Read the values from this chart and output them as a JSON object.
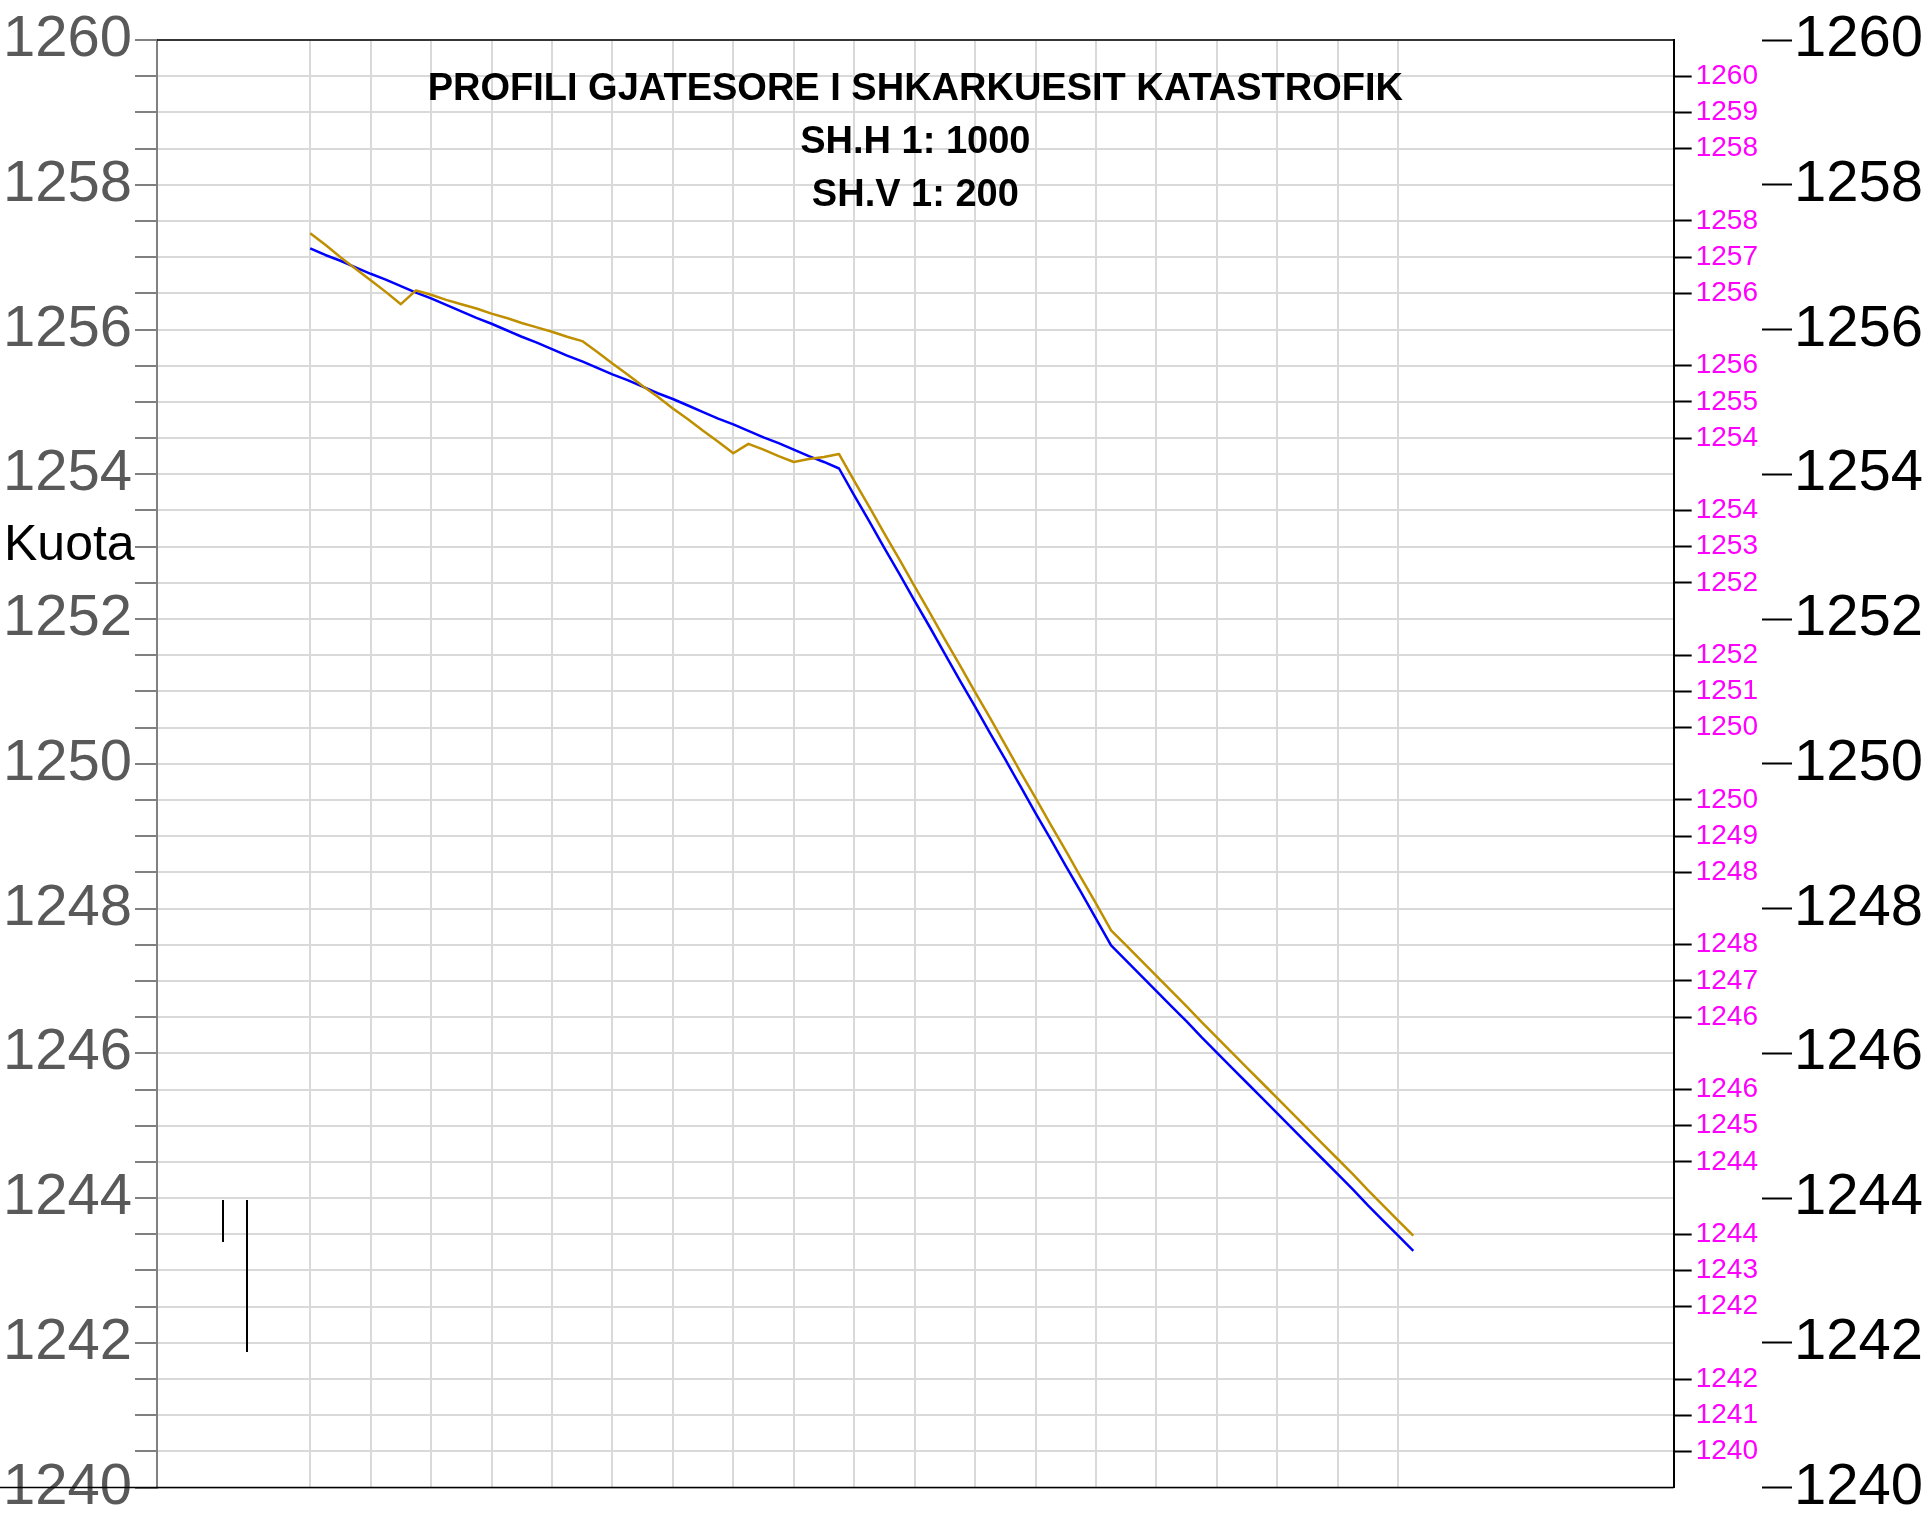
{
  "chart_data": {
    "type": "line",
    "title": "PROFILI GJATESORE I SHKARKUESIT KATASTROFIK",
    "subtitle": "SH.H 1: 1000",
    "annotations": [
      "SH.V 1: 200"
    ],
    "ylabel": "Kuota",
    "categories": [
      null,
      null,
      null,
      null,
      null,
      null,
      null,
      null,
      null,
      null,
      null,
      null,
      null,
      null,
      null,
      null,
      null,
      null,
      null,
      null,
      null,
      null,
      null,
      null,
      null,
      null,
      null,
      null,
      null,
      null,
      null,
      null,
      null,
      null,
      null,
      null,
      null,
      null,
      null,
      null,
      null,
      null,
      null,
      null,
      null,
      null,
      null,
      null,
      null,
      null,
      null,
      null,
      null,
      null,
      null,
      null,
      null,
      null,
      null,
      null,
      null,
      null,
      null,
      null,
      null,
      null,
      null,
      null,
      null,
      null,
      null,
      null,
      null,
      null
    ],
    "ylim": [
      1240,
      1260
    ],
    "yticks": [
      1240,
      {
        "value": 1240.5,
        "label": null
      },
      {
        "value": 1241,
        "label": null
      },
      {
        "value": 1241.5,
        "label": null
      },
      1242,
      {
        "value": 1242.5,
        "label": null
      },
      {
        "value": 1243,
        "label": null
      },
      {
        "value": 1243.5,
        "label": null
      },
      1244,
      {
        "value": 1244.5,
        "label": null
      },
      {
        "value": 1245,
        "label": null
      },
      {
        "value": 1245.5,
        "label": null
      },
      1246,
      {
        "value": 1246.5,
        "label": null
      },
      {
        "value": 1247,
        "label": null
      },
      {
        "value": 1247.5,
        "label": null
      },
      1248,
      {
        "value": 1248.5,
        "label": null
      },
      {
        "value": 1249,
        "label": null
      },
      {
        "value": 1249.5,
        "label": null
      },
      1250,
      {
        "value": 1250.5,
        "label": null
      },
      {
        "value": 1251,
        "label": null
      },
      {
        "value": 1251.5,
        "label": null
      },
      1252,
      {
        "value": 1252.5,
        "label": null
      },
      {
        "value": 1253,
        "label": null
      },
      {
        "value": 1253.5,
        "label": null
      },
      1254,
      {
        "value": 1254.5,
        "label": null
      },
      {
        "value": 1255,
        "label": null
      },
      {
        "value": 1255.5,
        "label": null
      },
      1256,
      {
        "value": 1256.5,
        "label": null
      },
      {
        "value": 1257,
        "label": null
      },
      {
        "value": 1257.5,
        "label": null
      },
      1258,
      {
        "value": 1258.5,
        "label": null
      },
      {
        "value": 1259,
        "label": null
      },
      {
        "value": 1259.5,
        "label": null
      },
      1260
    ],
    "y3lim": [
      1240,
      1260
    ],
    "y3ticks": [
      1240,
      1242,
      1244,
      1246,
      1248,
      1250,
      1252,
      1254,
      1256,
      1258,
      1260
    ],
    "y2lim": [
      1240,
      1260
    ],
    "y2ticks": [
      {
        "value": 1240.5,
        "label": "1240"
      },
      {
        "value": 1241,
        "label": "1241"
      },
      {
        "value": 1241.5,
        "label": "1242"
      },
      {
        "value": 1242.5,
        "label": "1242"
      },
      {
        "value": 1243,
        "label": "1243"
      },
      {
        "value": 1243.5,
        "label": "1244"
      },
      {
        "value": 1244.5,
        "label": "1244"
      },
      {
        "value": 1245,
        "label": "1245"
      },
      {
        "value": 1245.5,
        "label": "1246"
      },
      {
        "value": 1246.5,
        "label": "1246"
      },
      {
        "value": 1247,
        "label": "1247"
      },
      {
        "value": 1247.5,
        "label": "1248"
      },
      {
        "value": 1248.5,
        "label": "1248"
      },
      {
        "value": 1249,
        "label": "1249"
      },
      {
        "value": 1249.5,
        "label": "1250"
      },
      {
        "value": 1250.5,
        "label": "1250"
      },
      {
        "value": 1251,
        "label": "1251"
      },
      {
        "value": 1251.5,
        "label": "1252"
      },
      {
        "value": 1252.5,
        "label": "1252"
      },
      {
        "value": 1253,
        "label": "1253"
      },
      {
        "value": 1253.5,
        "label": "1254"
      },
      {
        "value": 1254.5,
        "label": "1254"
      },
      {
        "value": 1255,
        "label": "1255"
      },
      {
        "value": 1255.5,
        "label": "1256"
      },
      {
        "value": 1256.5,
        "label": "1256"
      },
      {
        "value": 1257,
        "label": "1257"
      },
      {
        "value": 1257.5,
        "label": "1258"
      },
      {
        "value": 1258.5,
        "label": "1258"
      },
      {
        "value": 1259,
        "label": "1259"
      },
      {
        "value": 1259.5,
        "label": "1260"
      }
    ],
    "grid": true,
    "marker": "none",
    "series": [
      {
        "color": "#bf8f00",
        "values": [
          1257.33,
          1257.17,
          1257.0,
          1256.84,
          1256.68,
          1256.52,
          1256.35,
          1256.54,
          1256.48,
          1256.41,
          1256.35,
          1256.29,
          1256.22,
          1256.16,
          1256.09,
          1256.03,
          1255.97,
          1255.9,
          1255.84,
          1255.69,
          1255.53,
          1255.38,
          1255.22,
          1255.07,
          1254.91,
          1254.76,
          1254.6,
          1254.45,
          1254.29,
          1254.42,
          1254.34,
          1254.25,
          1254.17,
          1254.21,
          1254.24,
          1254.28,
          1253.91,
          1253.55,
          1253.18,
          1252.82,
          1252.45,
          1252.09,
          1251.72,
          1251.36,
          1250.99,
          1250.63,
          1250.26,
          1249.89,
          1249.53,
          1249.16,
          1248.8,
          1248.43,
          1248.07,
          1247.7,
          1247.49,
          1247.28,
          1247.07,
          1246.86,
          1246.65,
          1246.43,
          1246.22,
          1246.01,
          1245.8,
          1245.59,
          1245.38,
          1245.17,
          1244.96,
          1244.75,
          1244.54,
          1244.33,
          1244.11,
          1243.9,
          1243.69,
          1243.48
        ]
      },
      {
        "color": "#0000ff",
        "values": [
          1257.12,
          1257.03,
          1256.95,
          1256.86,
          1256.77,
          1256.69,
          1256.6,
          1256.51,
          1256.43,
          1256.34,
          1256.25,
          1256.16,
          1256.08,
          1255.99,
          1255.9,
          1255.82,
          1255.73,
          1255.64,
          1255.56,
          1255.47,
          1255.38,
          1255.3,
          1255.21,
          1255.12,
          1255.04,
          1254.95,
          1254.86,
          1254.77,
          1254.69,
          1254.6,
          1254.51,
          1254.43,
          1254.34,
          1254.25,
          1254.17,
          1254.08,
          1253.71,
          1253.35,
          1252.98,
          1252.62,
          1252.25,
          1251.89,
          1251.52,
          1251.15,
          1250.79,
          1250.42,
          1250.06,
          1249.69,
          1249.32,
          1248.96,
          1248.59,
          1248.23,
          1247.86,
          1247.49,
          1247.28,
          1247.07,
          1246.86,
          1246.65,
          1246.44,
          1246.22,
          1246.01,
          1245.8,
          1245.59,
          1245.38,
          1245.17,
          1244.96,
          1244.75,
          1244.54,
          1244.33,
          1244.12,
          1243.9,
          1243.69,
          1243.48,
          1243.27
        ]
      }
    ]
  }
}
